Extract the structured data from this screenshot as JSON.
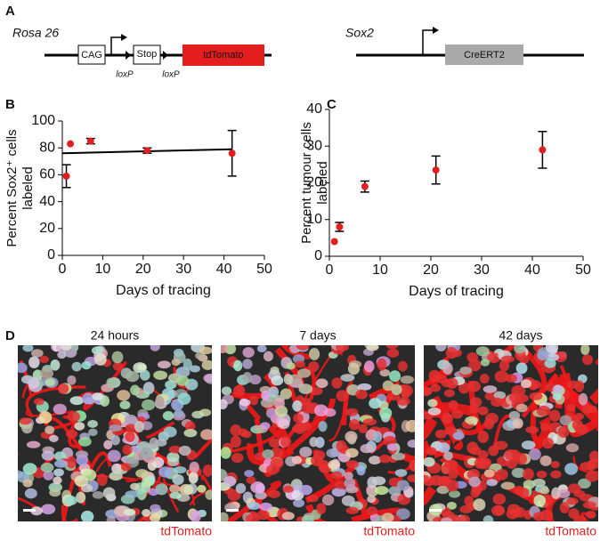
{
  "panel_labels": [
    "A",
    "B",
    "C",
    "D"
  ],
  "diagram": {
    "rosa_label": "Rosa 26",
    "cag": "CAG",
    "stop": "Stop",
    "loxp": [
      "loxP",
      "loxP"
    ],
    "tdtomato": "tdTomato",
    "sox2_label": "Sox2",
    "creert2": "CreERT2"
  },
  "chart_data": [
    {
      "type": "scatter",
      "xlabel": "Days of tracing",
      "ylabel": [
        "Percent Sox2⁺ cells",
        "labeled"
      ],
      "x": [
        1,
        2,
        7,
        21,
        42
      ],
      "values": [
        59,
        83,
        85,
        78,
        76
      ],
      "errors": [
        8.5,
        null,
        2,
        2,
        17
      ],
      "color": "#e02020",
      "fit": {
        "x": [
          0,
          42
        ],
        "y": [
          76,
          79
        ]
      },
      "xlim": [
        0,
        50
      ],
      "xticks": [
        0,
        10,
        20,
        30,
        40,
        50
      ],
      "ylim": [
        0,
        100
      ],
      "yticks": [
        0,
        20,
        40,
        60,
        80,
        100
      ]
    },
    {
      "type": "scatter",
      "xlabel": "Days of tracing",
      "ylabel": [
        "Percent  tumour cells",
        "labeled"
      ],
      "x": [
        1,
        2,
        7,
        21,
        42
      ],
      "values": [
        4,
        8,
        19,
        23.5,
        29
      ],
      "errors": [
        null,
        1.2,
        1.5,
        3.8,
        5
      ],
      "color": "#e02020",
      "xlim": [
        0,
        50
      ],
      "xticks": [
        0,
        10,
        20,
        30,
        40,
        50
      ],
      "ylim": [
        0,
        40
      ],
      "yticks": [
        0,
        10,
        20,
        30,
        40
      ]
    }
  ],
  "images": [
    {
      "title": "24 hours",
      "caption": "tdTomato"
    },
    {
      "title": "7 days",
      "caption": "tdTomato"
    },
    {
      "title": "42 days",
      "caption": "tdTomato"
    }
  ]
}
